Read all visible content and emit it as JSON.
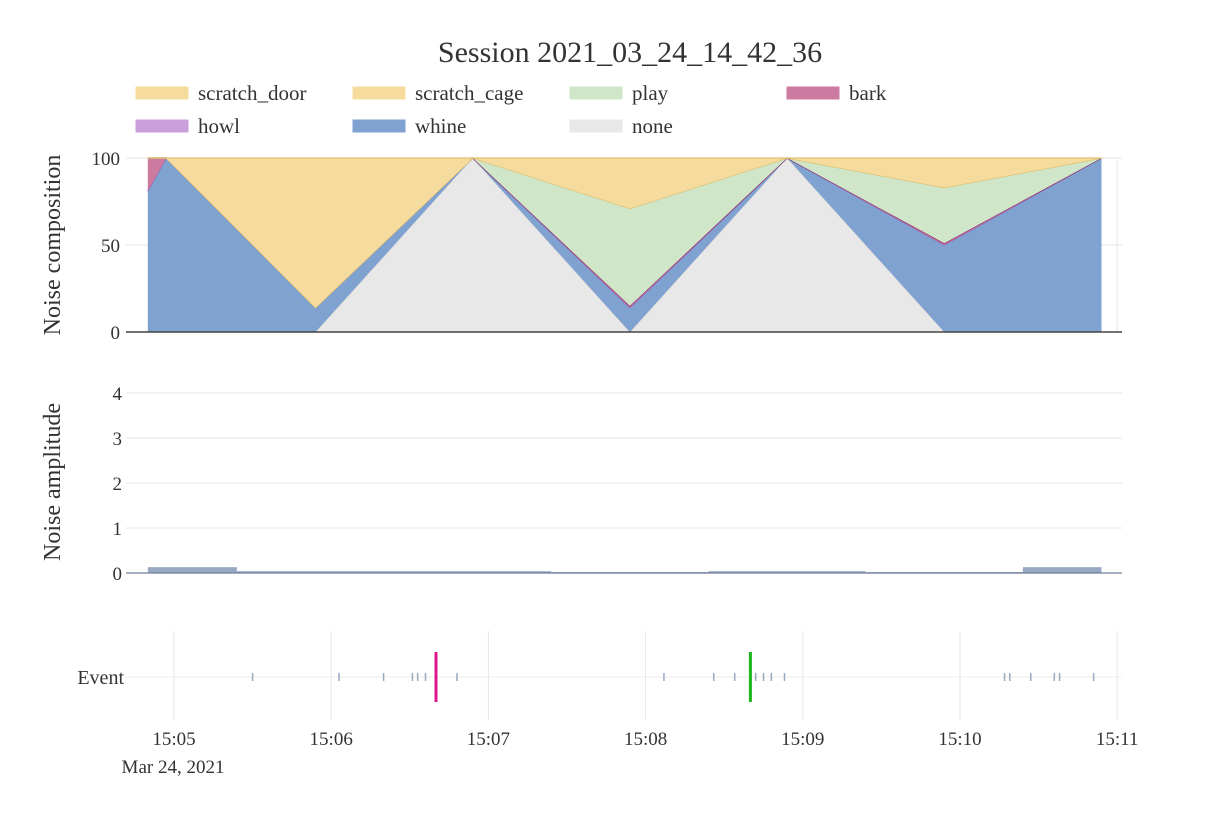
{
  "chart_data": {
    "title": "Session 2021_03_24_14_42_36",
    "x_ticks": [
      "15:05",
      "15:06",
      "15:07",
      "15:08",
      "15:09",
      "15:10",
      "15:11"
    ],
    "x_date_label": "Mar 24, 2021",
    "legend": [
      {
        "name": "scratch_door",
        "color": "#f5dc9e"
      },
      {
        "name": "scratch_cage",
        "color": "#f5dc9e"
      },
      {
        "name": "play",
        "color": "#cfe6c8"
      },
      {
        "name": "bark",
        "color": "#cc7aa0"
      },
      {
        "name": "howl",
        "color": "#c9a0dc"
      },
      {
        "name": "whine",
        "color": "#7fa2d0"
      },
      {
        "name": "none",
        "color": "#e8e8e8"
      }
    ],
    "composition": {
      "type": "area",
      "stacked": true,
      "ylabel": "Noise composition",
      "ylim": [
        0,
        100
      ],
      "y_ticks": [
        0,
        50,
        100
      ],
      "x": [
        "15:04:50",
        "15:04:57",
        "15:05:54",
        "15:06:54",
        "15:07:54",
        "15:08:54",
        "15:09:54",
        "15:10:54"
      ],
      "series": [
        {
          "name": "none",
          "color": "#e8e8e8",
          "values": [
            0,
            0,
            0,
            100,
            0,
            100,
            0,
            0
          ]
        },
        {
          "name": "whine",
          "color": "#7fa2d0",
          "values": [
            81,
            100,
            14,
            0,
            14,
            0,
            50,
            100
          ]
        },
        {
          "name": "howl",
          "color": "#c9a0dc",
          "values": [
            0,
            0,
            0,
            0,
            0,
            0,
            0,
            0
          ]
        },
        {
          "name": "bark",
          "color": "#cc7aa0",
          "values": [
            19,
            0,
            0,
            0,
            1,
            0,
            1,
            0
          ]
        },
        {
          "name": "play",
          "color": "#cfe6c8",
          "values": [
            0,
            0,
            0,
            0,
            56,
            0,
            32,
            0
          ]
        },
        {
          "name": "scratch_cage",
          "color": "#f5dc9e",
          "values": [
            0,
            0,
            0,
            0,
            0,
            0,
            0,
            0
          ]
        },
        {
          "name": "scratch_door",
          "color": "#f5dc9e",
          "values": [
            0,
            0,
            86,
            0,
            29,
            0,
            17,
            0
          ]
        }
      ]
    },
    "amplitude": {
      "type": "bar",
      "ylabel": "Noise amplitude",
      "ylim": [
        0,
        4.4
      ],
      "y_ticks": [
        0,
        1,
        2,
        3,
        4
      ],
      "color": "#98a9c4",
      "bars": [
        {
          "start": "15:04:50",
          "end": "15:05:24",
          "value": 0.13
        },
        {
          "start": "15:05:24",
          "end": "15:07:24",
          "value": 0.04
        },
        {
          "start": "15:07:24",
          "end": "15:08:24",
          "value": 0.02
        },
        {
          "start": "15:08:24",
          "end": "15:09:24",
          "value": 0.04
        },
        {
          "start": "15:09:24",
          "end": "15:10:24",
          "value": 0.02
        },
        {
          "start": "15:10:24",
          "end": "15:10:54",
          "value": 0.13
        }
      ]
    },
    "events": {
      "type": "scatter",
      "ylabel": "Event",
      "minor_color": "#9aa8c4",
      "minor_times": [
        "15:05:30",
        "15:06:03",
        "15:06:20",
        "15:06:31",
        "15:06:33",
        "15:06:36",
        "15:06:40",
        "15:06:48",
        "15:08:07",
        "15:08:26",
        "15:08:34",
        "15:08:42",
        "15:08:45",
        "15:08:48",
        "15:08:53",
        "15:10:17",
        "15:10:19",
        "15:10:27",
        "15:10:36",
        "15:10:38",
        "15:10:51"
      ],
      "major": [
        {
          "time": "15:06:40",
          "color": "#e0158a"
        },
        {
          "time": "15:08:40",
          "color": "#1fb51f"
        }
      ]
    }
  }
}
